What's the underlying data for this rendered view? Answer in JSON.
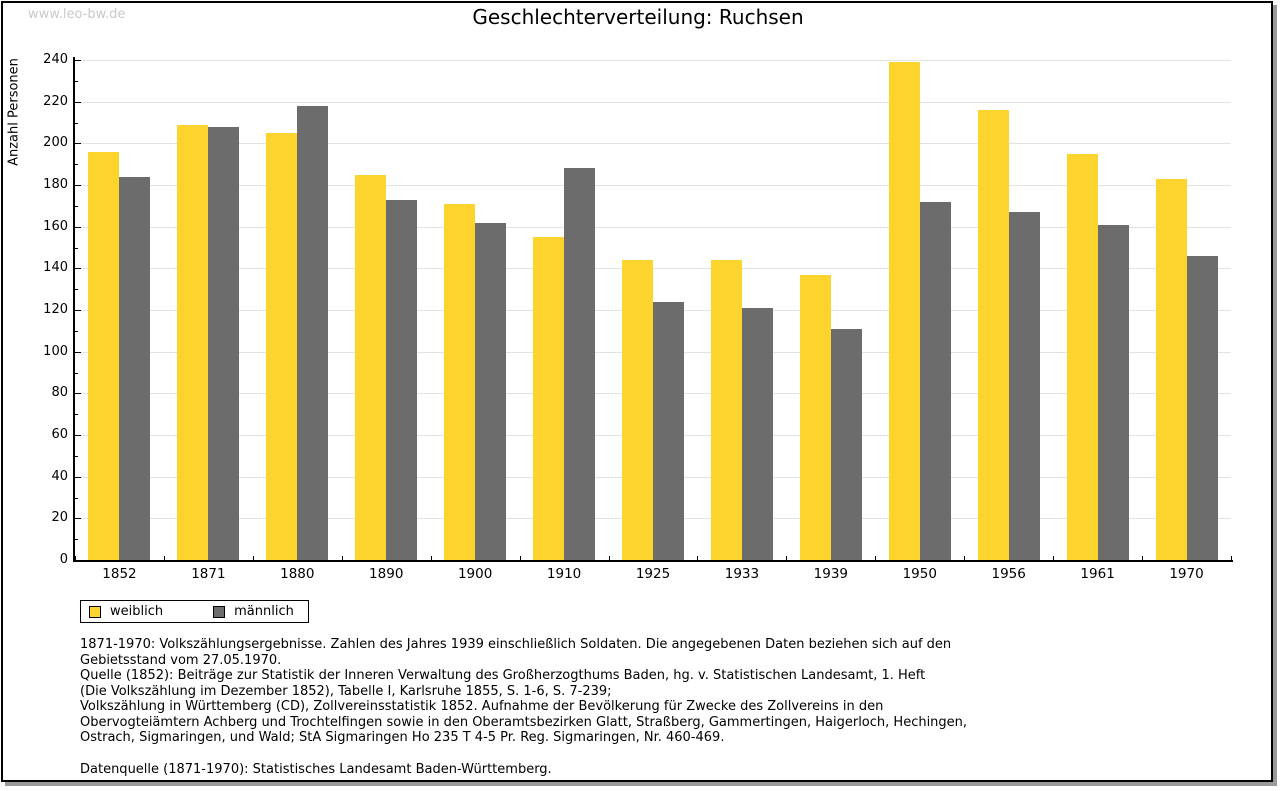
{
  "page": {
    "watermark": "www.leo-bw.de"
  },
  "chart_data": {
    "type": "bar",
    "title": "Geschlechterverteilung: Ruchsen",
    "xlabel": "",
    "ylabel": "Anzahl Personen",
    "categories": [
      "1852",
      "1871",
      "1880",
      "1890",
      "1900",
      "1910",
      "1925",
      "1933",
      "1939",
      "1950",
      "1956",
      "1961",
      "1970"
    ],
    "series": [
      {
        "name": "weiblich",
        "color": "#FCD42D",
        "values": [
          196,
          209,
          205,
          185,
          171,
          155,
          144,
          144,
          137,
          239,
          216,
          195,
          183
        ]
      },
      {
        "name": "männlich",
        "color": "#6C6C6C",
        "values": [
          184,
          208,
          218,
          173,
          162,
          188,
          124,
          121,
          111,
          172,
          167,
          161,
          146
        ]
      }
    ],
    "ylim": [
      0,
      240
    ],
    "ytick_step": 20,
    "ytick_minor_step": 10,
    "grid": true,
    "gridline_color": "#e3e3e3",
    "legend_position": "bottom-left"
  },
  "footer": {
    "lines": [
      "1871-1970: Volkszählungsergebnisse. Zahlen des Jahres 1939 einschließlich Soldaten. Die angegebenen Daten beziehen sich auf den",
      "Gebietsstand vom 27.05.1970.",
      "Quelle (1852): Beiträge zur Statistik der Inneren Verwaltung des Großherzogthums Baden, hg. v. Statistischen Landesamt, 1. Heft",
      "(Die Volkszählung im Dezember 1852), Tabelle I, Karlsruhe 1855, S. 1-6, S. 7-239;",
      "Volkszählung in Württemberg (CD), Zollvereinsstatistik 1852. Aufnahme der Bevölkerung für Zwecke des Zollvereins in den",
      "Obervogteiämtern Achberg und Trochtelfingen sowie in den Oberamtsbezirken Glatt, Straßberg, Gammertingen, Haigerloch, Hechingen,",
      "Ostrach, Sigmaringen, und Wald; StA Sigmaringen Ho 235 T 4-5 Pr. Reg. Sigmaringen, Nr. 460-469."
    ],
    "datenquelle": "Datenquelle (1871-1970): Statistisches Landesamt Baden-Württemberg."
  }
}
